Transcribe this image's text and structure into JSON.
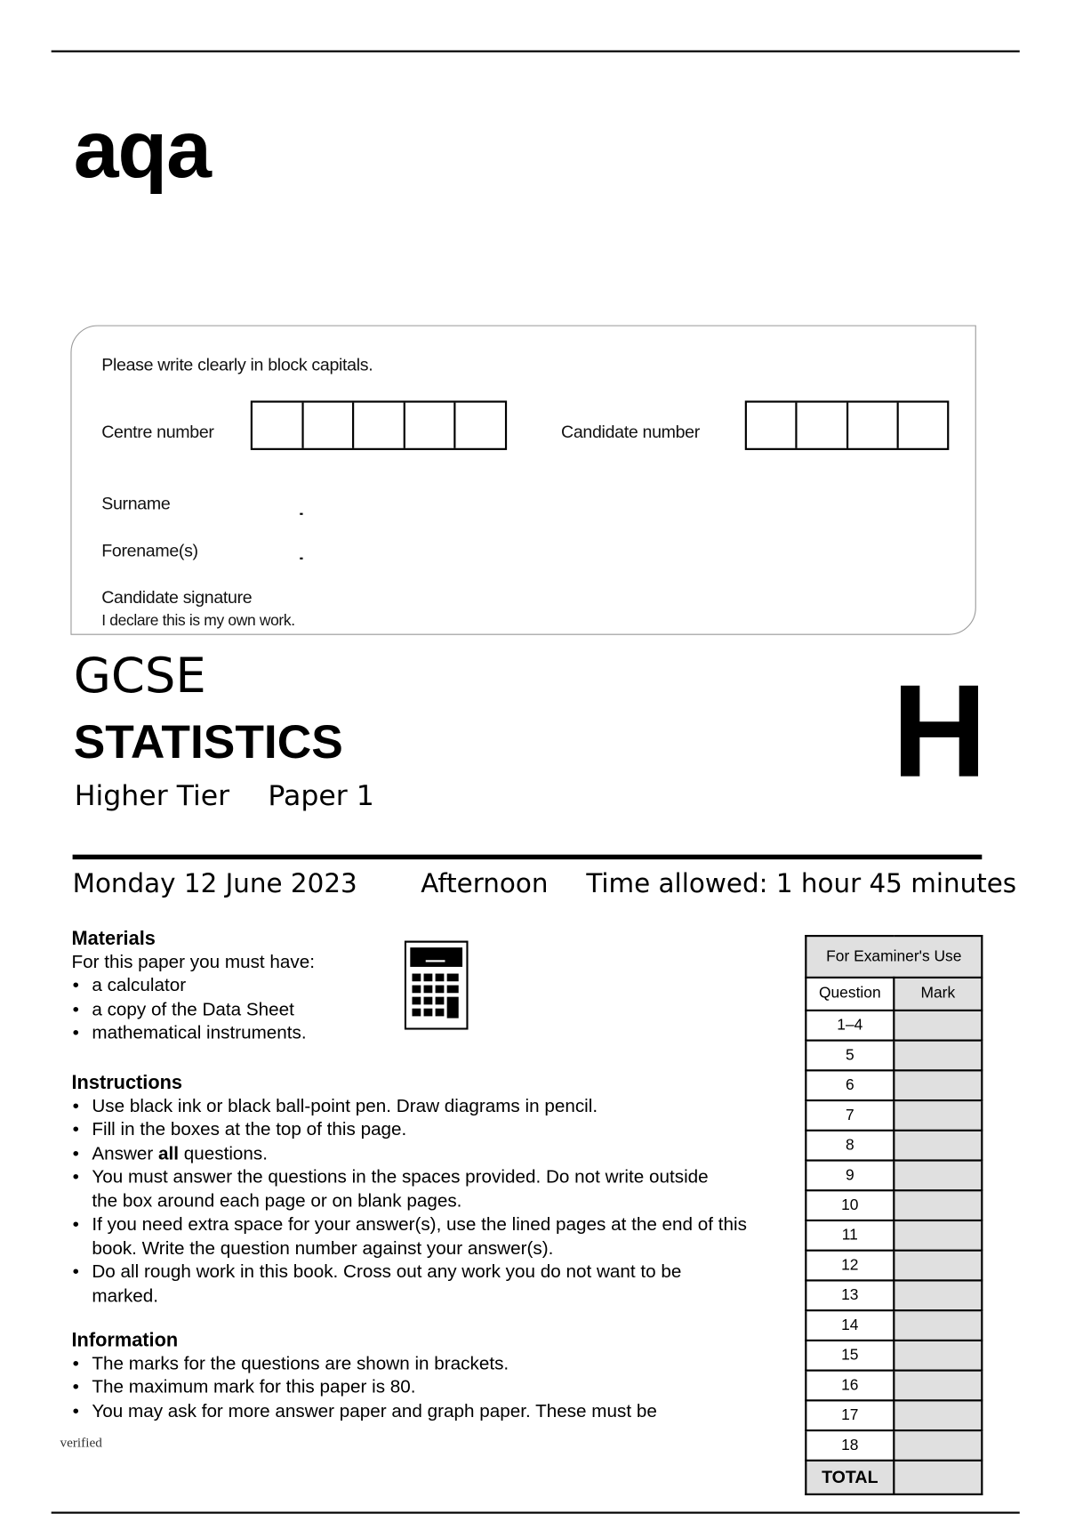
{
  "logo": "aqa",
  "candidate_box": {
    "instruction": "Please write clearly in block capitals.",
    "centre_number_label": "Centre number",
    "candidate_number_label": "Candidate number",
    "surname_label": "Surname",
    "forenames_label": "Forename(s)",
    "signature_label": "Candidate signature",
    "declaration": "I declare this is my own work."
  },
  "title": {
    "qualification": "GCSE",
    "subject": "STATISTICS",
    "tier": "Higher Tier",
    "paper": "Paper 1",
    "tier_letter": "H"
  },
  "exam_info": {
    "date": "Monday 12 June 2023",
    "session": "Afternoon",
    "time_allowed": "Time allowed: 1 hour 45 minutes"
  },
  "materials": {
    "heading": "Materials",
    "intro": "For this paper you must have:",
    "items": [
      "a calculator",
      "a copy of the Data Sheet",
      "mathematical instruments."
    ],
    "icon": "calculator-icon"
  },
  "instructions": {
    "heading": "Instructions",
    "items": [
      "Use black ink or black ball-point pen.  Draw diagrams in pencil.",
      "Fill in the boxes at the top of this page.",
      {
        "pre": "Answer ",
        "bold": "all",
        "post": " questions."
      },
      "You must answer the questions in the spaces provided.  Do not write outside the box around each page or on blank pages.",
      "If you need extra space for your answer(s), use the lined pages at the end of this book.  Write the question number against your answer(s).",
      "Do all rough work in this book.  Cross out any work you do not want to be marked."
    ]
  },
  "information": {
    "heading": "Information",
    "items": [
      "The marks for the questions are shown in brackets.",
      "The maximum mark for this paper is 80.",
      "You may ask for more answer paper and graph paper.  These must be"
    ]
  },
  "watermark": "verified",
  "examiner_table": {
    "title": "For Examiner's Use",
    "col_question": "Question",
    "col_mark": "Mark",
    "questions": [
      "1–4",
      "5",
      "6",
      "7",
      "8",
      "9",
      "10",
      "11",
      "12",
      "13",
      "14",
      "15",
      "16",
      "17",
      "18"
    ],
    "total_label": "TOTAL"
  }
}
